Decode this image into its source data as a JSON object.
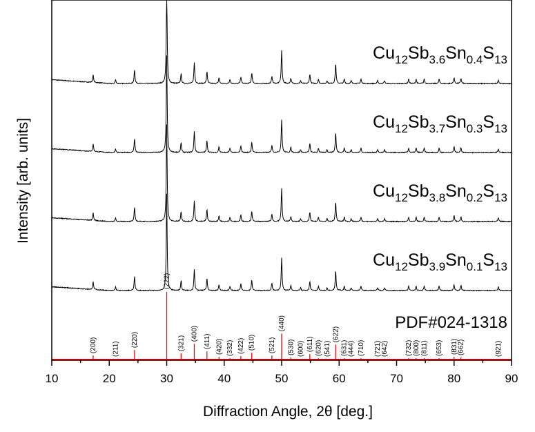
{
  "chart_data": {
    "type": "line",
    "title": "",
    "xlabel": "Diffraction Angle, 2θ [deg.]",
    "ylabel": "Intensity [arb. units]",
    "xlim": [
      10,
      90
    ],
    "xticks": [
      10,
      20,
      30,
      40,
      50,
      60,
      70,
      80,
      90
    ],
    "grid": false,
    "colors": {
      "trace": "#000000",
      "reference": "#ff0000"
    },
    "series": [
      {
        "name": "Cu12Sb3.6Sn0.4S13",
        "parts": [
          "Cu",
          "12",
          "Sb",
          "3.6",
          "Sn",
          "0.4",
          "S",
          "13"
        ]
      },
      {
        "name": "Cu12Sb3.7Sn0.3S13",
        "parts": [
          "Cu",
          "12",
          "Sb",
          "3.7",
          "Sn",
          "0.3",
          "S",
          "13"
        ]
      },
      {
        "name": "Cu12Sb3.8Sn0.2S13",
        "parts": [
          "Cu",
          "12",
          "Sb",
          "3.8",
          "Sn",
          "0.2",
          "S",
          "13"
        ]
      },
      {
        "name": "Cu12Sb3.9Sn0.1S13",
        "parts": [
          "Cu",
          "12",
          "Sb",
          "3.9",
          "Sn",
          "0.1",
          "S",
          "13"
        ]
      }
    ],
    "reference": {
      "name": "PDF#024-1318",
      "peaks": [
        {
          "hkl": "(200)",
          "two_theta": 17.2,
          "intensity": 7
        },
        {
          "hkl": "(211)",
          "two_theta": 21.1,
          "intensity": 2
        },
        {
          "hkl": "(220)",
          "two_theta": 24.4,
          "intensity": 15
        },
        {
          "hkl": "(222)",
          "two_theta": 30.0,
          "intensity": 100
        },
        {
          "hkl": "(321)",
          "two_theta": 32.5,
          "intensity": 10
        },
        {
          "hkl": "(400)",
          "two_theta": 34.8,
          "intensity": 24
        },
        {
          "hkl": "(411)",
          "two_theta": 37.0,
          "intensity": 13
        },
        {
          "hkl": "(420)",
          "two_theta": 39.1,
          "intensity": 5
        },
        {
          "hkl": "(332)",
          "two_theta": 41.0,
          "intensity": 3
        },
        {
          "hkl": "(422)",
          "two_theta": 42.9,
          "intensity": 6
        },
        {
          "hkl": "(510)",
          "two_theta": 44.8,
          "intensity": 11
        },
        {
          "hkl": "(521)",
          "two_theta": 48.3,
          "intensity": 7
        },
        {
          "hkl": "(440)",
          "two_theta": 50.0,
          "intensity": 39
        },
        {
          "hkl": "(530)",
          "two_theta": 51.6,
          "intensity": 4
        },
        {
          "hkl": "(600)",
          "two_theta": 53.3,
          "intensity": 1
        },
        {
          "hkl": "(611)",
          "two_theta": 54.9,
          "intensity": 9
        },
        {
          "hkl": "(620)",
          "two_theta": 56.4,
          "intensity": 3
        },
        {
          "hkl": "(541)",
          "two_theta": 57.9,
          "intensity": 1
        },
        {
          "hkl": "(622)",
          "two_theta": 59.4,
          "intensity": 23
        },
        {
          "hkl": "(631)",
          "two_theta": 60.9,
          "intensity": 3
        },
        {
          "hkl": "(444)",
          "two_theta": 62.1,
          "intensity": 1
        },
        {
          "hkl": "(710)",
          "two_theta": 63.8,
          "intensity": 3
        },
        {
          "hkl": "(721)",
          "two_theta": 66.7,
          "intensity": 1
        },
        {
          "hkl": "(642)",
          "two_theta": 67.9,
          "intensity": 1
        },
        {
          "hkl": "(732)",
          "two_theta": 72.1,
          "intensity": 3
        },
        {
          "hkl": "(800)",
          "two_theta": 73.4,
          "intensity": 3
        },
        {
          "hkl": "(811)",
          "two_theta": 74.8,
          "intensity": 3
        },
        {
          "hkl": "(653)",
          "two_theta": 77.4,
          "intensity": 3
        },
        {
          "hkl": "(831)",
          "two_theta": 80.0,
          "intensity": 5
        },
        {
          "hkl": "(662)",
          "two_theta": 81.2,
          "intensity": 4
        },
        {
          "hkl": "(921)",
          "two_theta": 87.7,
          "intensity": 2
        }
      ]
    }
  }
}
